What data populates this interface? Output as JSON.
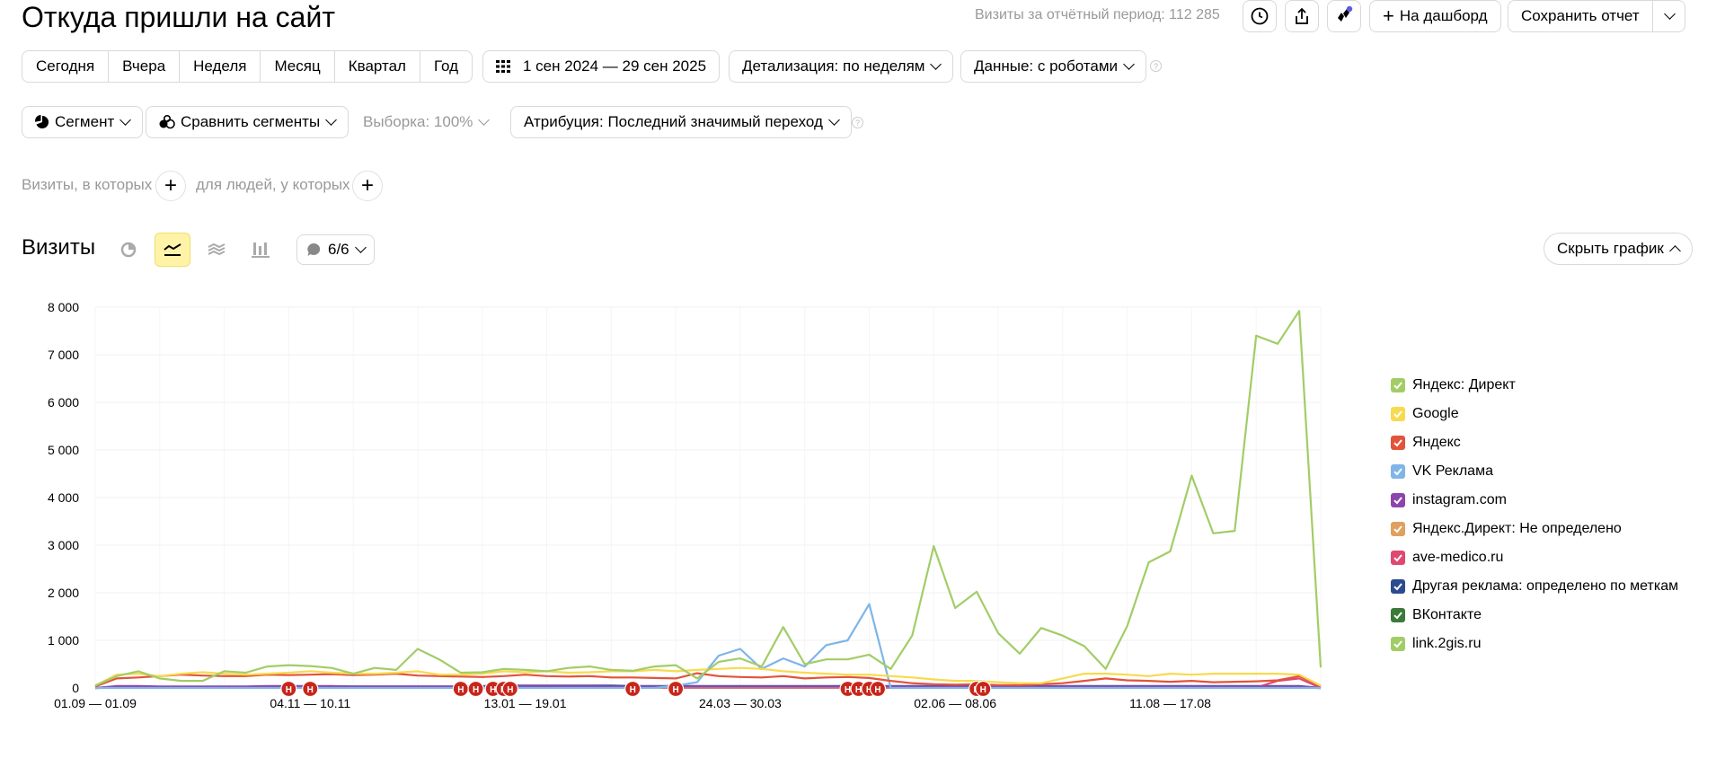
{
  "header": {
    "title": "Откуда пришли на сайт",
    "visits_total": "Визиты за отчётный период: 112 285",
    "add_dashboard": "На дашборд",
    "save_report": "Сохранить отчет"
  },
  "period": {
    "buttons": [
      "Сегодня",
      "Вчера",
      "Неделя",
      "Месяц",
      "Квартал",
      "Год"
    ],
    "date_range": "1 сен 2024 — 29 сен 2025",
    "detail": "Детализация: по неделям",
    "data": "Данные: с роботами"
  },
  "filters": {
    "segment": "Сегмент",
    "compare": "Сравнить сегменты",
    "sample": "Выборка: 100%",
    "attribution": "Атрибуция: Последний значимый переход"
  },
  "conditions": {
    "visits_label": "Визиты, в которых",
    "people_label": "для людей, у которых"
  },
  "chart_header": {
    "title": "Визиты",
    "notes_count": "6/6",
    "hide_chart": "Скрыть график"
  },
  "chart_data": {
    "type": "line",
    "x_tick_labels": [
      "01.09 — 01.09",
      "04.11 — 10.11",
      "13.01 — 19.01",
      "24.03 — 30.03",
      "02.06 — 08.06",
      "11.08 — 17.08"
    ],
    "x_tick_index": [
      0,
      10,
      20,
      30,
      40,
      50
    ],
    "ylim": [
      0,
      8000
    ],
    "y_ticks": [
      0,
      1000,
      2000,
      3000,
      4000,
      5000,
      6000,
      7000,
      8000
    ],
    "y_tick_labels": [
      "0",
      "1 000",
      "2 000",
      "3 000",
      "4 000",
      "5 000",
      "6 000",
      "7 000",
      "8 000"
    ],
    "grid": true,
    "legend_position": "right",
    "series": [
      {
        "name": "Яндекс: Директ",
        "color": "#a2cd66",
        "values": [
          50,
          250,
          350,
          200,
          150,
          150,
          350,
          320,
          450,
          480,
          460,
          420,
          300,
          420,
          380,
          820,
          600,
          320,
          330,
          400,
          380,
          350,
          420,
          450,
          380,
          360,
          450,
          480,
          200,
          550,
          620,
          450,
          1280,
          500,
          600,
          600,
          700,
          400,
          1100,
          2980,
          1680,
          2020,
          1150,
          720,
          1260,
          1100,
          880,
          400,
          1300,
          2640,
          2870,
          4460,
          3250,
          3300,
          7400,
          7230,
          7920,
          430
        ]
      },
      {
        "name": "Google",
        "color": "#f8da4e",
        "values": [
          50,
          280,
          300,
          250,
          300,
          330,
          300,
          280,
          300,
          320,
          350,
          320,
          300,
          300,
          320,
          350,
          280,
          280,
          300,
          350,
          330,
          350,
          320,
          330,
          350,
          350,
          380,
          350,
          380,
          400,
          420,
          400,
          350,
          320,
          300,
          280,
          280,
          250,
          220,
          180,
          150,
          150,
          120,
          100,
          100,
          200,
          300,
          300,
          280,
          250,
          300,
          280,
          300,
          300,
          300,
          300,
          280,
          50
        ]
      },
      {
        "name": "Яндекс",
        "color": "#e3533a",
        "values": [
          30,
          200,
          220,
          250,
          280,
          260,
          250,
          250,
          280,
          270,
          280,
          290,
          270,
          280,
          300,
          260,
          250,
          240,
          230,
          250,
          280,
          250,
          240,
          250,
          220,
          220,
          210,
          200,
          310,
          250,
          230,
          220,
          250,
          200,
          220,
          230,
          210,
          150,
          100,
          80,
          70,
          80,
          60,
          60,
          80,
          100,
          150,
          200,
          160,
          150,
          130,
          150,
          120,
          130,
          140,
          160,
          250,
          40
        ]
      },
      {
        "name": "VK Реклама",
        "color": "#7fb5e8",
        "values": [
          0,
          0,
          0,
          0,
          0,
          0,
          0,
          0,
          0,
          0,
          0,
          0,
          0,
          0,
          0,
          0,
          0,
          0,
          0,
          0,
          0,
          0,
          0,
          0,
          0,
          0,
          0,
          50,
          120,
          680,
          820,
          400,
          620,
          450,
          900,
          1000,
          1760,
          0,
          0,
          0,
          0,
          0,
          0,
          0,
          0,
          0,
          0,
          0,
          0,
          0,
          0,
          0,
          0,
          0,
          0,
          0,
          0,
          0
        ]
      },
      {
        "name": "instagram.com",
        "color": "#8e44ad",
        "values": [
          0,
          40,
          40,
          30,
          30,
          30,
          30,
          30,
          40,
          40,
          40,
          40,
          30,
          30,
          30,
          30,
          30,
          30,
          30,
          30,
          40,
          40,
          40,
          40,
          30,
          30,
          30,
          30,
          30,
          30,
          30,
          30,
          30,
          30,
          30,
          30,
          30,
          30,
          30,
          30,
          30,
          30,
          30,
          30,
          30,
          30,
          30,
          30,
          30,
          30,
          30,
          30,
          30,
          30,
          30,
          30,
          30,
          0
        ]
      },
      {
        "name": "Яндекс.Директ: Не определено",
        "color": "#e0a060",
        "values": [
          0,
          20,
          20,
          20,
          20,
          20,
          20,
          20,
          20,
          20,
          20,
          20,
          20,
          20,
          20,
          20,
          20,
          20,
          20,
          20,
          20,
          20,
          20,
          20,
          20,
          20,
          20,
          20,
          20,
          20,
          20,
          20,
          20,
          20,
          20,
          20,
          20,
          20,
          20,
          20,
          20,
          20,
          20,
          20,
          20,
          20,
          20,
          20,
          20,
          20,
          20,
          20,
          20,
          20,
          20,
          20,
          20,
          0
        ]
      },
      {
        "name": "ave-medico.ru",
        "color": "#e04870",
        "values": [
          0,
          10,
          10,
          10,
          10,
          10,
          10,
          10,
          10,
          10,
          10,
          10,
          10,
          10,
          10,
          10,
          10,
          10,
          10,
          10,
          10,
          10,
          10,
          10,
          10,
          10,
          10,
          10,
          10,
          10,
          10,
          10,
          10,
          10,
          10,
          10,
          10,
          10,
          10,
          10,
          10,
          10,
          10,
          10,
          10,
          10,
          10,
          10,
          10,
          10,
          10,
          10,
          10,
          10,
          10,
          150,
          200,
          0
        ]
      },
      {
        "name": "Другая реклама: определено по меткам",
        "color": "#2c4a8f",
        "values": [
          0,
          20,
          20,
          20,
          20,
          20,
          20,
          20,
          20,
          20,
          20,
          30,
          30,
          30,
          30,
          30,
          30,
          30,
          40,
          50,
          50,
          50,
          50,
          50,
          50,
          40,
          40,
          40,
          40,
          40,
          40,
          40,
          40,
          40,
          40,
          40,
          40,
          40,
          40,
          40,
          40,
          40,
          40,
          40,
          40,
          40,
          40,
          40,
          40,
          40,
          40,
          40,
          40,
          40,
          40,
          40,
          40,
          0
        ]
      },
      {
        "name": "ВКонтакте",
        "color": "#3a7a3a",
        "values": [
          0,
          10,
          10,
          10,
          10,
          10,
          10,
          10,
          10,
          10,
          10,
          10,
          10,
          10,
          10,
          10,
          10,
          10,
          10,
          10,
          10,
          10,
          10,
          10,
          10,
          10,
          10,
          10,
          10,
          10,
          10,
          10,
          10,
          10,
          10,
          10,
          10,
          10,
          10,
          10,
          10,
          10,
          10,
          10,
          10,
          10,
          10,
          10,
          10,
          10,
          10,
          10,
          10,
          10,
          10,
          10,
          10,
          0
        ]
      },
      {
        "name": "link.2gis.ru",
        "color": "#a2cd66",
        "values": [
          0,
          5,
          5,
          5,
          5,
          5,
          5,
          5,
          5,
          5,
          5,
          5,
          5,
          5,
          5,
          5,
          5,
          5,
          5,
          5,
          5,
          5,
          5,
          5,
          5,
          5,
          5,
          5,
          5,
          5,
          5,
          5,
          5,
          5,
          5,
          5,
          5,
          5,
          5,
          5,
          5,
          5,
          5,
          5,
          5,
          5,
          5,
          5,
          5,
          5,
          5,
          5,
          5,
          5,
          5,
          5,
          5,
          0
        ]
      }
    ],
    "notes": {
      "marker_label": "Н",
      "positions": [
        9,
        10,
        17,
        17.7,
        18.5,
        19,
        19.3,
        25,
        27,
        35,
        35.5,
        36,
        36.4,
        41,
        41.3
      ]
    }
  }
}
